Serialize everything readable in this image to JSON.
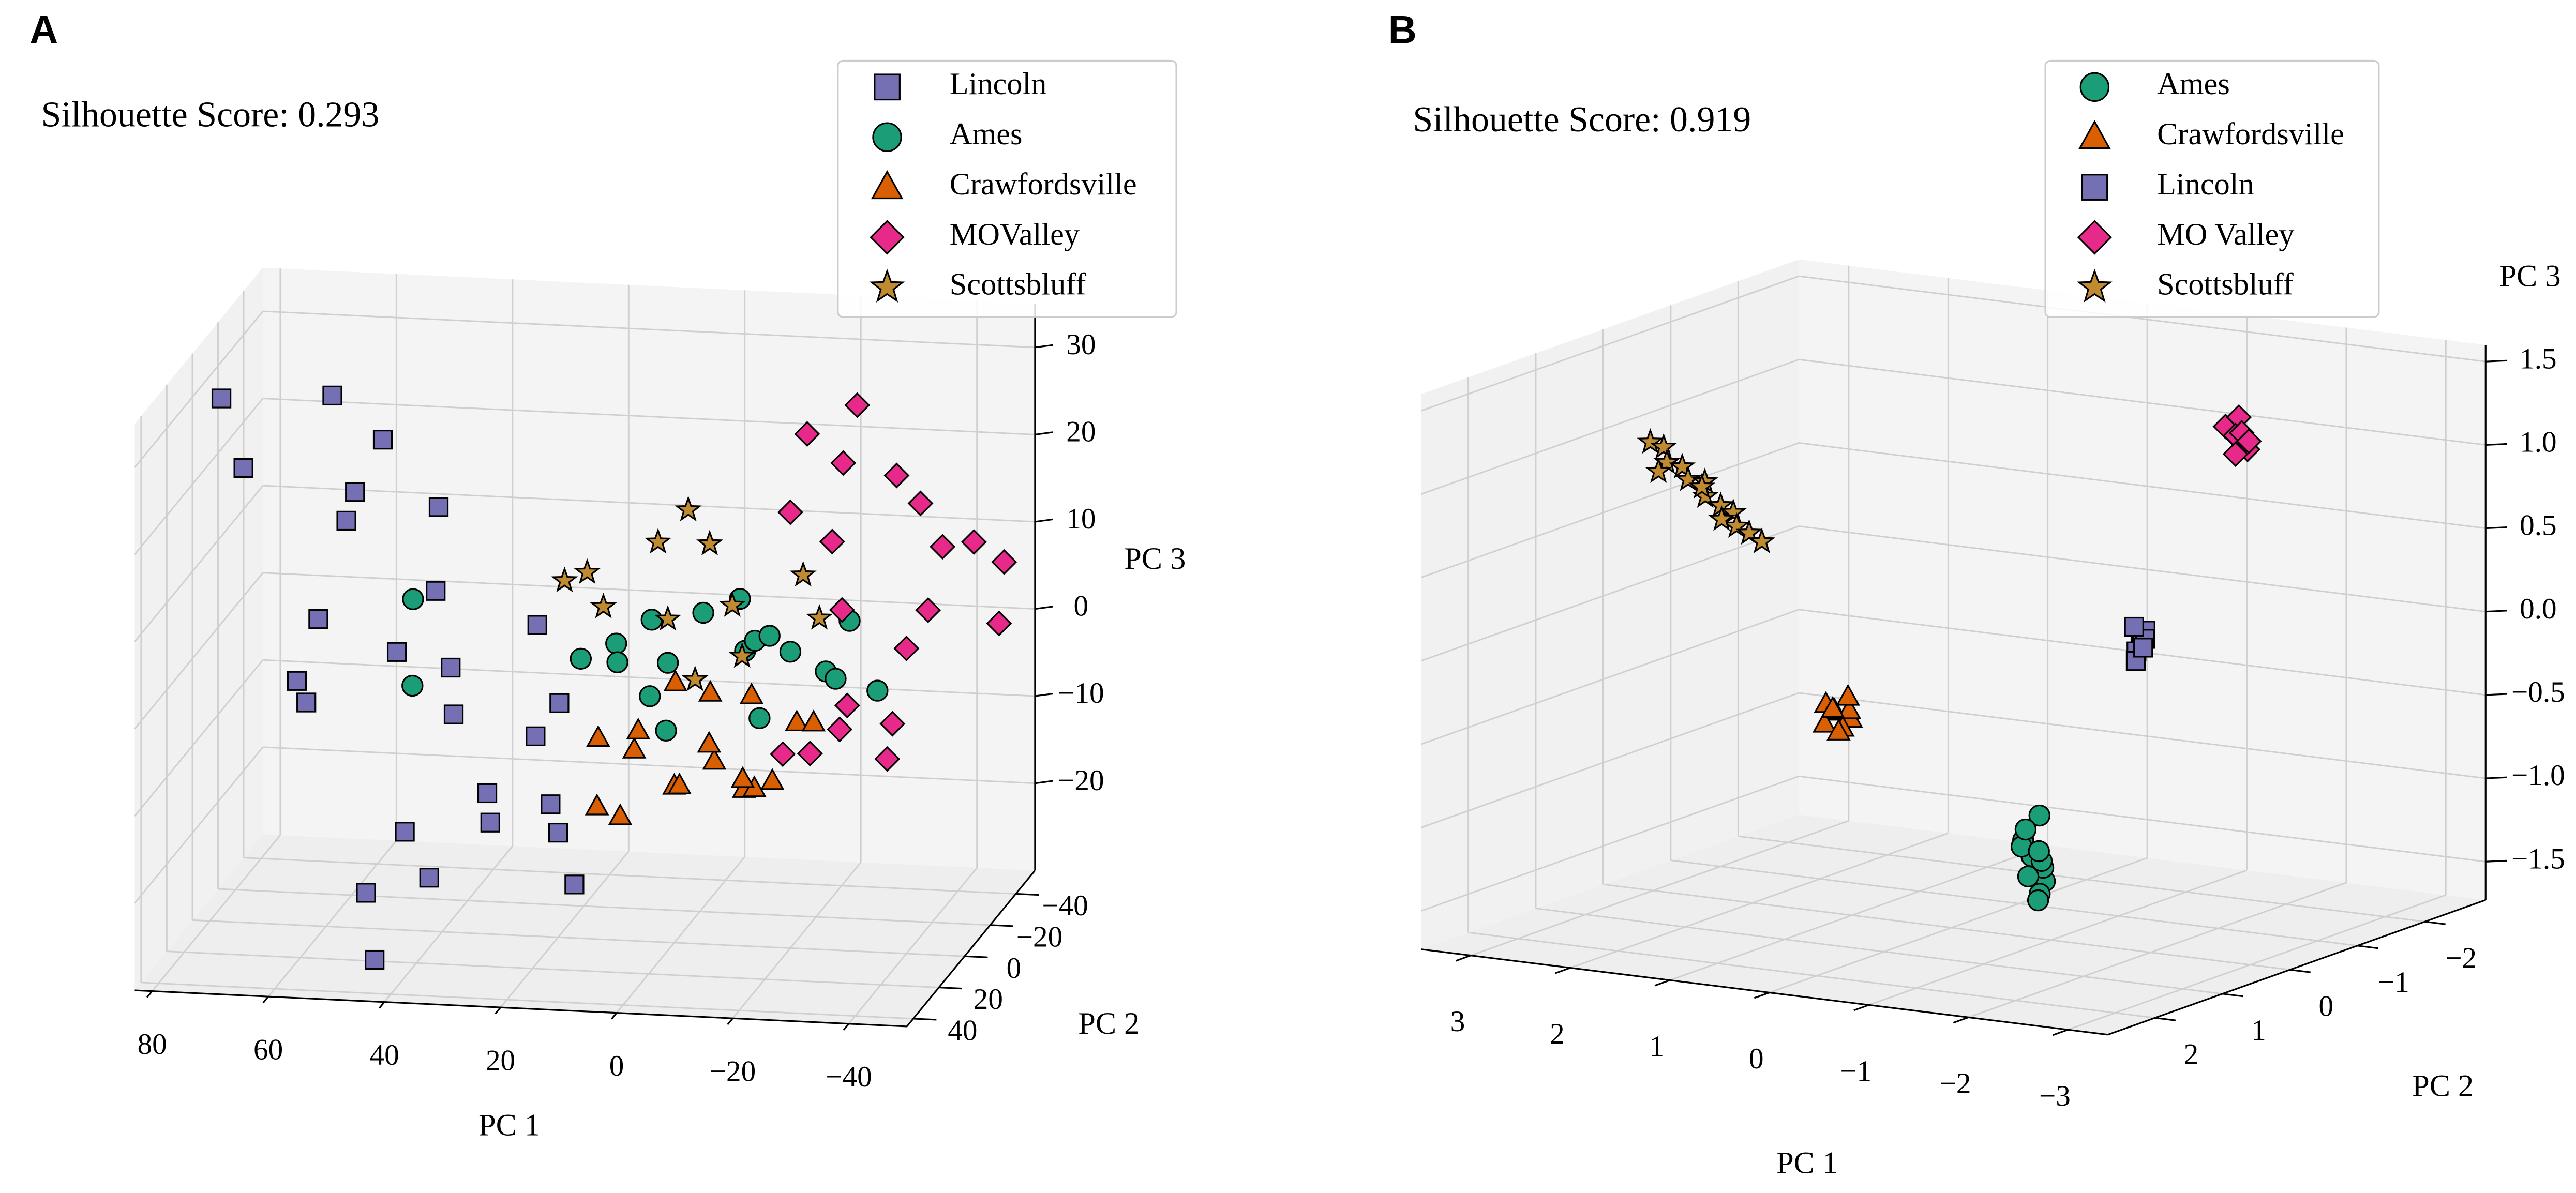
{
  "chart_data": [
    {
      "type": "scatter3d",
      "panel": "A",
      "annotation": "Silhouette Score: 0.293",
      "xlabel": "PC 1",
      "ylabel": "PC 2",
      "zlabel": "PC 3",
      "xlim": [
        -50,
        83
      ],
      "ylim": [
        -55,
        45
      ],
      "zlim": [
        -30,
        35
      ],
      "xticks": [
        80,
        60,
        40,
        20,
        0,
        {
          "value": -20,
          "label": "−20"
        },
        {
          "value": -40,
          "label": "−40"
        }
      ],
      "yticks": [
        {
          "value": -40,
          "label": "−40"
        },
        {
          "value": -20,
          "label": "−20"
        },
        0,
        20,
        40
      ],
      "zticks": [
        {
          "value": -20,
          "label": "−20"
        },
        {
          "value": -10,
          "label": "−10"
        },
        0,
        10,
        20,
        30
      ],
      "grid": true,
      "series": [
        {
          "name": "Lincoln",
          "color": "#7570b3",
          "marker": "s",
          "x": [
            72,
            60,
            55,
            48,
            45,
            40,
            58,
            65,
            50,
            38,
            30,
            25,
            42,
            35,
            20,
            15,
            28,
            52,
            45,
            62,
            33,
            22,
            70,
            18,
            78,
            40
          ],
          "y": [
            10,
            -5,
            0,
            10,
            -20,
            5,
            15,
            0,
            -10,
            0,
            10,
            -5,
            20,
            -15,
            0,
            10,
            -20,
            5,
            30,
            -25,
            25,
            -10,
            -30,
            15,
            0,
            10
          ],
          "z": [
            24,
            30,
            20,
            28,
            15,
            10,
            8,
            -2,
            0,
            -5,
            -12,
            -8,
            -15,
            -20,
            -18,
            -22,
            2,
            -25,
            -28,
            12,
            5,
            -5,
            -10,
            -12,
            30,
            -22
          ]
        },
        {
          "name": "Ames",
          "color": "#1b9e77",
          "marker": "o",
          "x": [
            10,
            5,
            0,
            -5,
            -10,
            -15,
            -20,
            -25,
            -30,
            -35,
            2,
            -8,
            -18,
            -28,
            12,
            15,
            -3,
            -12,
            45,
            44
          ],
          "y": [
            0,
            -5,
            5,
            0,
            -10,
            5,
            0,
            -5,
            10,
            0,
            10,
            -15,
            15,
            -10,
            -10,
            5,
            20,
            -20,
            0,
            5
          ],
          "z": [
            4,
            6,
            3,
            8,
            2,
            6,
            4,
            1,
            3,
            0,
            0,
            7,
            -1,
            6,
            0,
            3,
            -2,
            2,
            8,
            -1
          ]
        },
        {
          "name": "Crawfordsville",
          "color": "#d95f02",
          "marker": "^",
          "x": [
            12,
            8,
            4,
            0,
            -4,
            -8,
            -12,
            -16,
            -20,
            6,
            -2,
            -10,
            -14,
            2,
            10,
            -6,
            -18,
            -24
          ],
          "y": [
            5,
            -5,
            10,
            0,
            -10,
            5,
            0,
            10,
            -5,
            15,
            5,
            -15,
            10,
            -10,
            15,
            0,
            5,
            0
          ],
          "z": [
            -6,
            -9,
            -4,
            -12,
            -3,
            -8,
            -12,
            -10,
            -5,
            -13,
            -11,
            -4,
            -9,
            -2,
            -12,
            -7,
            -10,
            -4
          ]
        },
        {
          "name": "MOValley",
          "color": "#e7298a",
          "marker": "D",
          "x": [
            -20,
            -25,
            -30,
            -35,
            -40,
            -45,
            -22,
            -28,
            -32,
            -38,
            -42,
            -48,
            -26,
            -34,
            -44,
            -30,
            -36,
            -24,
            -40,
            -46
          ],
          "y": [
            0,
            -10,
            5,
            -15,
            0,
            -30,
            15,
            -5,
            10,
            -20,
            20,
            -40,
            -25,
            25,
            -10,
            30,
            -35,
            5,
            15,
            -45
          ],
          "z": [
            20,
            15,
            10,
            22,
            5,
            12,
            -5,
            25,
            0,
            18,
            0,
            8,
            28,
            0,
            15,
            -2,
            3,
            30,
            -5,
            0
          ]
        },
        {
          "name": "Scottsbluff",
          "color": "#c08a30",
          "marker": "*",
          "x": [
            15,
            10,
            5,
            0,
            -5,
            -10,
            -15,
            -20,
            20,
            -8,
            2,
            -25
          ],
          "y": [
            0,
            10,
            -10,
            5,
            -5,
            0,
            15,
            -10,
            -5,
            20,
            -20,
            0
          ],
          "z": [
            12,
            10,
            14,
            8,
            15,
            9,
            6,
            11,
            10,
            4,
            16,
            8
          ]
        }
      ]
    },
    {
      "type": "scatter3d",
      "panel": "B",
      "annotation": "Silhouette Score: 0.919",
      "xlabel": "PC 1",
      "ylabel": "PC 2",
      "zlabel": "PC 3",
      "xlim": [
        -3.4,
        3.5
      ],
      "ylim": [
        -2.9,
        2.7
      ],
      "zlim": [
        -1.73,
        1.6
      ],
      "xticks": [
        3,
        2,
        1,
        0,
        {
          "value": -1,
          "label": "−1"
        },
        {
          "value": -2,
          "label": "−2"
        },
        {
          "value": -3,
          "label": "−3"
        }
      ],
      "yticks": [
        {
          "value": -2,
          "label": "−2"
        },
        {
          "value": -1,
          "label": "−1"
        },
        0,
        1,
        2
      ],
      "zticks": [
        {
          "value": -1.5,
          "label": "−1.5"
        },
        {
          "value": -1,
          "label": "−1.0"
        },
        {
          "value": -0.5,
          "label": "−0.5"
        },
        {
          "value": 0,
          "label": "0.0"
        },
        0.5,
        {
          "value": 1,
          "label": "1.0"
        },
        1.5
      ],
      "grid": true,
      "series": [
        {
          "name": "Ames",
          "color": "#1b9e77",
          "marker": "o",
          "x": [
            -0.6,
            -0.7,
            -0.55,
            -0.65,
            -0.5,
            -0.75,
            -0.6,
            -0.68,
            -0.58,
            -0.62,
            -0.7,
            -0.52
          ],
          "y": [
            -0.3,
            -0.35,
            -0.25,
            -0.4,
            -0.3,
            -0.2,
            -0.45,
            -0.3,
            -0.28,
            -0.38,
            -0.25,
            -0.33
          ],
          "z": [
            -1.3,
            -1.45,
            -1.2,
            -1.38,
            -1.25,
            -1.5,
            -1.35,
            -1.05,
            -1.42,
            -1.28,
            -1.55,
            -1.15
          ]
        },
        {
          "name": "Crawfordsville",
          "color": "#d95f02",
          "marker": "^",
          "x": [
            1.45,
            1.35,
            1.5,
            1.4,
            1.55,
            1.3,
            1.48,
            1.38,
            1.42,
            1.52
          ],
          "y": [
            -0.4,
            -0.5,
            -0.35,
            -0.45,
            -0.55,
            -0.4,
            -0.3,
            -0.5,
            -0.42,
            -0.48
          ],
          "z": [
            -0.6,
            -0.65,
            -0.55,
            -0.7,
            -0.62,
            -0.58,
            -0.66,
            -0.52,
            -0.72,
            -0.6
          ]
        },
        {
          "name": "Lincoln",
          "color": "#7570b3",
          "marker": "s",
          "x": [
            -2.0,
            -2.05,
            -1.98,
            -2.03,
            -2.0,
            -2.06,
            -1.97,
            -2.02
          ],
          "y": [
            0.15,
            0.2,
            0.18,
            0.12,
            0.22,
            0.17,
            0.2,
            0.14
          ],
          "z": [
            0.2,
            0.15,
            0.1,
            0.22,
            0.05,
            0.18,
            0.25,
            0.12
          ]
        },
        {
          "name": "MO Valley",
          "color": "#e7298a",
          "marker": "D",
          "x": [
            -1.65,
            -1.7,
            -1.6,
            -1.72,
            -1.68,
            -1.62,
            -1.75,
            -1.66,
            -1.7
          ],
          "y": [
            -1.75,
            -1.8,
            -1.7,
            -1.85,
            -1.78,
            -1.82,
            -1.72,
            -1.76,
            -1.9
          ],
          "z": [
            1.1,
            1.05,
            1.15,
            1.0,
            1.2,
            1.08,
            1.12,
            0.98,
            1.04
          ]
        },
        {
          "name": "Scottsbluff",
          "color": "#c08a30",
          "marker": "*",
          "x": [
            3.4,
            3.3,
            3.2,
            3.1,
            3.0,
            2.9,
            2.8,
            2.7,
            2.6,
            2.5,
            2.4,
            2.3,
            3.25,
            2.95,
            2.65
          ],
          "y": [
            -0.55,
            -0.6,
            -0.5,
            -0.58,
            -0.52,
            -0.62,
            -0.48,
            -0.56,
            -0.6,
            -0.5,
            -0.54,
            -0.58,
            -0.45,
            -0.65,
            -0.5
          ],
          "z": [
            0.85,
            0.82,
            0.75,
            0.72,
            0.66,
            0.64,
            0.58,
            0.52,
            0.48,
            0.42,
            0.38,
            0.33,
            0.7,
            0.6,
            0.45
          ]
        }
      ]
    }
  ]
}
